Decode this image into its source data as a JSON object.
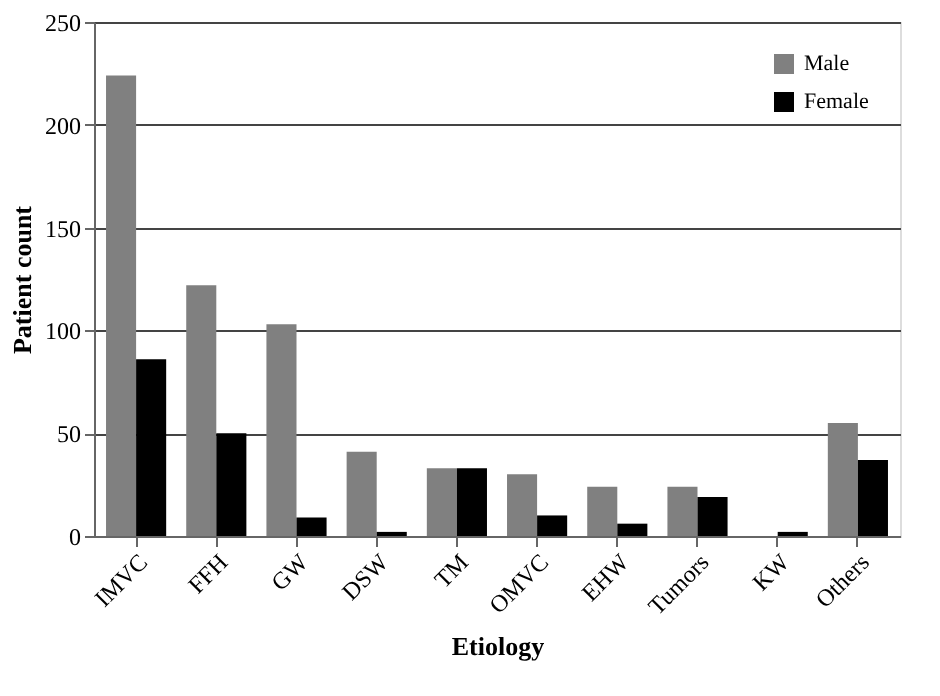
{
  "chart_data": {
    "type": "bar",
    "xlabel": "Etiology",
    "ylabel": "Patient count",
    "categories": [
      "IMVC",
      "FFH",
      "GW",
      "DSW",
      "TM",
      "OMVC",
      "EHW",
      "Tumors",
      "KW",
      "Others"
    ],
    "series": [
      {
        "name": "Male",
        "color": "#808080",
        "values": [
          224,
          122,
          103,
          41,
          33,
          30,
          24,
          24,
          0,
          55
        ]
      },
      {
        "name": "Female",
        "color": "#000000",
        "values": [
          86,
          50,
          9,
          2,
          33,
          10,
          6,
          19,
          2,
          37
        ]
      }
    ],
    "ylim": [
      0,
      250
    ],
    "yticks": [
      0,
      50,
      100,
      150,
      200,
      250
    ],
    "grid": "y",
    "legend": "top right"
  }
}
